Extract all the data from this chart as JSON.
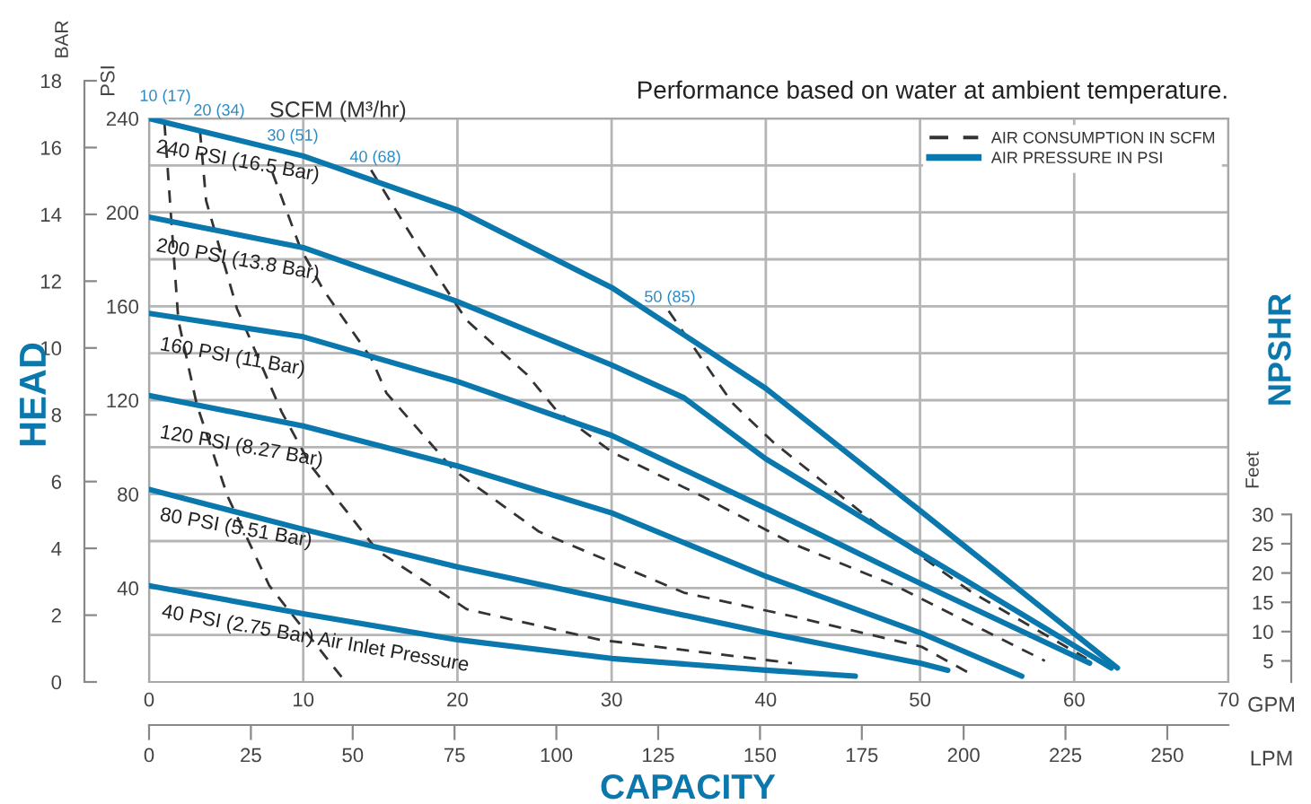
{
  "chart_data": {
    "type": "line",
    "title": "Performance based on water at ambient temperature.",
    "xlabel": "GPM",
    "x2label": "LPM",
    "ylabel": "PSI",
    "y3label": "BAR",
    "y2label": "Feet",
    "xlim": [
      0,
      70
    ],
    "xticks": [
      0,
      10,
      20,
      30,
      40,
      50,
      60,
      70
    ],
    "x2lim": [
      0,
      265
    ],
    "x2ticks": [
      0,
      25,
      50,
      75,
      100,
      125,
      150,
      175,
      200,
      225,
      250
    ],
    "ylim": [
      0,
      240
    ],
    "yticks": [
      40,
      80,
      120,
      160,
      200,
      240
    ],
    "y3lim": [
      0,
      18
    ],
    "y3ticks": [
      0,
      2,
      4,
      6,
      8,
      10,
      12,
      14,
      16,
      18
    ],
    "y2lim": [
      1.4,
      97.6
    ],
    "y2ticks": [
      5,
      10,
      15,
      20,
      25,
      30
    ],
    "grid": true,
    "legend": "top right",
    "series": [
      {
        "name": "AIR CONSUMPTION IN SCFM",
        "color": "#333333",
        "line_style": "dashed",
        "x": [
          1.0,
          1.9,
          3.1,
          5.1,
          7.8,
          12.5
        ],
        "values": [
          238,
          154,
          118,
          79,
          41,
          2
        ]
      },
      {
        "color": "#333333",
        "line_style": "dashed",
        "x": [
          3.3,
          3.7,
          5.7,
          8.6,
          10.5,
          14.8,
          20.6,
          29.2,
          41.7
        ],
        "values": [
          235,
          205,
          159,
          115,
          92,
          56,
          31,
          18,
          8
        ]
      },
      {
        "color": "#333333",
        "line_style": "dashed",
        "x": [
          8.0,
          9.8,
          11.3,
          14.4,
          15.4,
          19.8,
          25.3,
          34.7,
          41.7,
          50.1,
          53.4
        ],
        "values": [
          217,
          185,
          167,
          138,
          123,
          90,
          64,
          38,
          28,
          15,
          3
        ]
      },
      {
        "color": "#333333",
        "line_style": "dashed",
        "x": [
          14.4,
          17.5,
          20.6,
          24.5,
          26.5,
          30,
          35.9,
          41.7,
          48.4,
          58.1
        ],
        "values": [
          218,
          185,
          154,
          131,
          115,
          98,
          79,
          59,
          41,
          9
        ]
      },
      {
        "color": "#333333",
        "line_style": "dashed",
        "x": [
          33.7,
          37.8,
          40.5,
          47.2,
          53.4,
          60.8
        ],
        "values": [
          158,
          119,
          102,
          67,
          38,
          10
        ]
      },
      {
        "name": "AIR PRESSURE IN PSI",
        "color": "#0a78ad",
        "line_style": "solid",
        "x": [
          0,
          10,
          20,
          30,
          40,
          50,
          62.8
        ],
        "values": [
          240,
          224,
          201,
          168,
          125,
          73,
          6
        ]
      },
      {
        "color": "#0a78ad",
        "line_style": "solid",
        "x": [
          0,
          10,
          20,
          30,
          34.7,
          40,
          50,
          62.4
        ],
        "values": [
          198,
          185,
          162,
          135,
          121,
          95,
          55,
          6
        ]
      },
      {
        "color": "#0a78ad",
        "line_style": "solid",
        "x": [
          0,
          10,
          20,
          30,
          40,
          50,
          61
        ],
        "values": [
          157,
          147,
          128,
          105,
          74,
          42,
          8
        ]
      },
      {
        "color": "#0a78ad",
        "line_style": "solid",
        "x": [
          0,
          10,
          20,
          30,
          40,
          50,
          56.6
        ],
        "values": [
          122,
          109,
          92,
          72,
          45,
          21,
          2.5
        ]
      },
      {
        "color": "#0a78ad",
        "line_style": "solid",
        "x": [
          0,
          10,
          20,
          30,
          40,
          50,
          51.8
        ],
        "values": [
          82,
          65,
          49,
          35,
          21,
          8,
          5
        ]
      },
      {
        "color": "#0a78ad",
        "line_style": "solid",
        "x": [
          0,
          10,
          20,
          30,
          40,
          45.8
        ],
        "values": [
          41,
          29,
          18,
          10,
          5,
          2.5
        ]
      }
    ],
    "annotations": [
      "HEAD",
      "CAPACITY",
      "NPSHR",
      "SCFM (M³/hr)",
      "240 PSI (16.5 Bar)",
      "200 PSI (13.8 Bar)",
      "160 PSI (11 Bar)",
      "120 PSI (8.27 Bar)",
      "80 PSI (5.51 Bar)",
      "40 PSI (2.75 Bar) Air Inlet Pressure",
      "10 (17)",
      "20 (34)",
      "30 (51)",
      "40 (68)",
      "50 (85)"
    ]
  }
}
